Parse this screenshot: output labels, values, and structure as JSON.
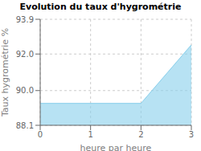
{
  "chart_data": {
    "type": "area",
    "title": "Evolution du taux d'hygrométrie",
    "xlabel": "heure par heure",
    "ylabel": "Taux hygrométrie %",
    "x": [
      0,
      2,
      3
    ],
    "values": [
      89.3,
      89.3,
      92.5
    ],
    "color": "#87CEEB",
    "xlim": [
      0,
      3
    ],
    "xticks": [
      0,
      1,
      2,
      3
    ],
    "ylim": [
      88.1,
      93.9
    ],
    "yticks": [
      88.1,
      {
        "value": 90.0,
        "label": "90.0"
      },
      {
        "value": 92.0,
        "label": "92.0"
      },
      93.9
    ],
    "grid": true
  }
}
